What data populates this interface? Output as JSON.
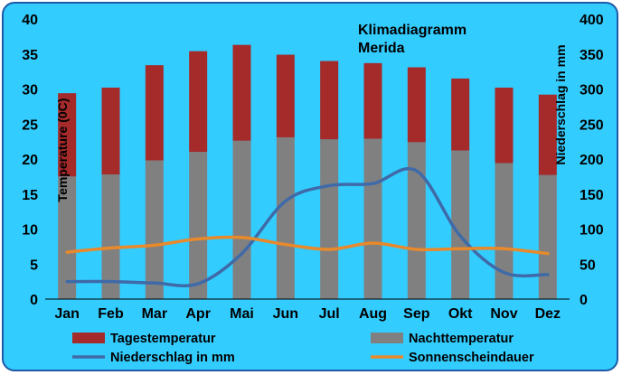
{
  "chart_data": {
    "type": "bar",
    "title": "Klimadiagramm",
    "subtitle": "Merida",
    "categories": [
      "Jan",
      "Feb",
      "Mar",
      "Apr",
      "Mai",
      "Jun",
      "Jul",
      "Aug",
      "Sep",
      "Okt",
      "Nov",
      "Dez"
    ],
    "ylabel_left": "Temperature (0C)",
    "ylabel_right": "Niederschlag in mm",
    "ylim_left": [
      0,
      40
    ],
    "ylim_right": [
      0,
      400
    ],
    "yticks_left": [
      "0",
      "5",
      "10",
      "15",
      "20",
      "25",
      "30",
      "35",
      "40"
    ],
    "yticks_right": [
      "0",
      "50",
      "100",
      "150",
      "200",
      "250",
      "300",
      "350",
      "400"
    ],
    "grid": false,
    "legend_position": "bottom",
    "series": [
      {
        "name": "Tagestemperatur",
        "kind": "stacked-bar-top",
        "axis": "left",
        "color": "#a52a2a",
        "values": [
          29.4,
          30.2,
          33.4,
          35.4,
          36.3,
          34.9,
          34.0,
          33.7,
          33.1,
          31.5,
          30.2,
          29.2
        ]
      },
      {
        "name": "Nachttemperatur",
        "kind": "bar-bottom",
        "axis": "left",
        "color": "#808080",
        "values": [
          17.5,
          17.8,
          19.8,
          21.0,
          22.6,
          23.1,
          22.8,
          22.9,
          22.4,
          21.2,
          19.4,
          17.7
        ]
      },
      {
        "name": "Niederschlag in mm",
        "kind": "line",
        "axis": "right",
        "color": "#3f6aa8",
        "values": [
          25,
          25,
          23,
          22,
          65,
          140,
          162,
          165,
          183,
          90,
          38,
          35
        ]
      },
      {
        "name": "Sonnenscheindauer",
        "kind": "line",
        "axis": "right",
        "color": "#e8892b",
        "values": [
          67,
          73,
          77,
          86,
          88,
          78,
          71,
          80,
          71,
          72,
          72,
          65
        ]
      }
    ]
  }
}
